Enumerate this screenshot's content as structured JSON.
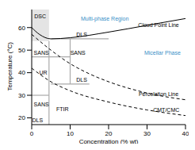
{
  "chart_data": {
    "type": "line",
    "xlabel": "Concentration (% wt)",
    "ylabel": "Temperature (°C)",
    "xlim": [
      0,
      40
    ],
    "ylim": [
      17,
      68
    ],
    "xticks": [
      0,
      10,
      20,
      30,
      40
    ],
    "yticks": [
      20,
      30,
      40,
      50,
      60
    ],
    "grid": false,
    "series": [
      {
        "name": "Cloud Point Line",
        "color": "#000000",
        "line_style": "solid",
        "x": [
          0,
          2,
          5,
          10,
          20,
          30,
          40
        ],
        "values": [
          60,
          57,
          55,
          55.5,
          58,
          61,
          64
        ]
      },
      {
        "name": "Percolation Line",
        "color": "#000000",
        "line_style": "dashed",
        "x": [
          0,
          5,
          10,
          15,
          20,
          30,
          40
        ],
        "values": [
          57,
          50,
          44,
          39.5,
          36,
          31,
          28
        ]
      },
      {
        "name": "CMT/CMC",
        "color": "#000000",
        "line_style": "dashed",
        "x": [
          0,
          5,
          10,
          20,
          30,
          40
        ],
        "values": [
          42,
          36,
          32,
          27,
          23.5,
          21
        ]
      }
    ],
    "regions": [
      {
        "x": [
          0,
          4.5
        ],
        "y": [
          54,
          68
        ],
        "color": "#dddddd"
      }
    ],
    "segments": [
      {
        "x": [
          5,
          20
        ],
        "y": [
          55,
          55
        ],
        "color": "#aaaaaa"
      },
      {
        "x": [
          10,
          10
        ],
        "y": [
          35,
          55
        ],
        "color": "#aaaaaa"
      },
      {
        "x": [
          5,
          15
        ],
        "y": [
          35,
          35
        ],
        "color": "#aaaaaa"
      },
      {
        "x": [
          0,
          10
        ],
        "y": [
          47,
          47
        ],
        "color": "#aaaaaa"
      },
      {
        "x": [
          4.5,
          4.5
        ],
        "y": [
          17,
          54
        ],
        "color": "#aaaaaa"
      },
      {
        "x": [
          0,
          4.5
        ],
        "y": [
          30,
          30
        ],
        "color": "#aaaaaa"
      }
    ],
    "annotations": [
      {
        "text": "Multi-phase Region",
        "x": 19,
        "y": 64,
        "color": "#3a8fc7"
      },
      {
        "text": "Micellar Phase",
        "x": 34,
        "y": 49,
        "color": "#3a8fc7"
      },
      {
        "text": "Cloud Point Line",
        "x": 33,
        "y": 61,
        "color": "#000000"
      },
      {
        "text": "Percolation Line",
        "x": 33,
        "y": 30.5,
        "color": "#000000"
      },
      {
        "text": "CMT/CMC",
        "x": 35,
        "y": 23.5,
        "color": "#000000"
      },
      {
        "text": "DSC",
        "x": 2.2,
        "y": 65,
        "color": "#000000"
      },
      {
        "text": "DLS",
        "x": 13,
        "y": 57,
        "color": "#000000"
      },
      {
        "text": "SANS",
        "x": 12,
        "y": 49,
        "color": "#000000"
      },
      {
        "text": "DLS",
        "x": 13,
        "y": 37,
        "color": "#000000"
      },
      {
        "text": "SANS",
        "x": 2.5,
        "y": 49,
        "color": "#000000"
      },
      {
        "text": "UR",
        "x": 3,
        "y": 40,
        "color": "#000000"
      },
      {
        "text": "SANS",
        "x": 2.5,
        "y": 26,
        "color": "#000000"
      },
      {
        "text": "FTIR",
        "x": 8,
        "y": 24,
        "color": "#000000"
      },
      {
        "text": "DLS",
        "x": 1.5,
        "y": 19,
        "color": "#000000"
      }
    ]
  }
}
